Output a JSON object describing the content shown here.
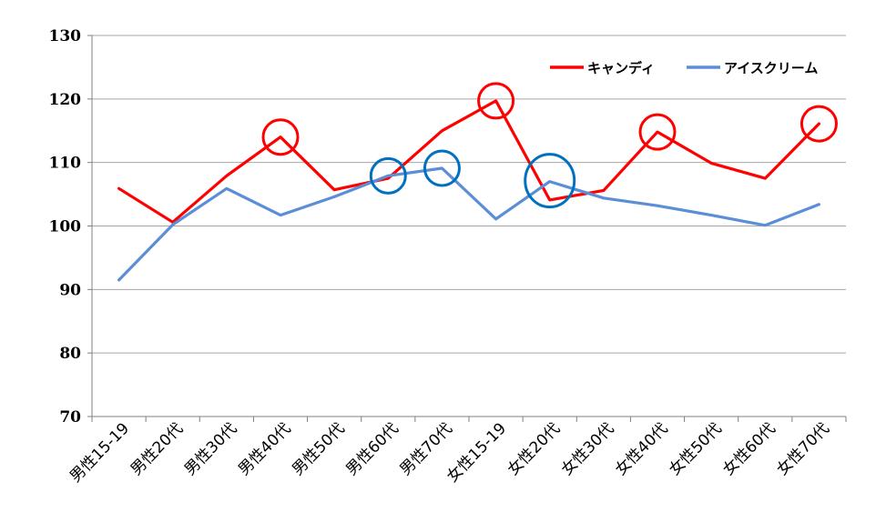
{
  "chart_data": {
    "type": "line",
    "title": "",
    "xlabel": "",
    "ylabel": "",
    "ylim": [
      70,
      130
    ],
    "yticks": [
      70,
      80,
      90,
      100,
      110,
      120,
      130
    ],
    "grid": "horizontal",
    "legend_position": "top-right",
    "categories": [
      "男性15-19",
      "男性20代",
      "男性30代",
      "男性40代",
      "男性50代",
      "男性60代",
      "男性70代",
      "女性15-19",
      "女性20代",
      "女性30代",
      "女性40代",
      "女性50代",
      "女性60代",
      "女性70代"
    ],
    "series": [
      {
        "name": "キャンディ",
        "color": "#ff0000",
        "values": [
          105.9,
          100.6,
          107.9,
          114.0,
          105.7,
          107.5,
          115.0,
          119.7,
          104.1,
          105.6,
          114.8,
          109.9,
          107.5,
          116.1
        ]
      },
      {
        "name": "アイスクリーム",
        "color": "#5b8ed6",
        "values": [
          91.5,
          100.2,
          105.9,
          101.7,
          104.6,
          107.9,
          109.1,
          101.1,
          107.0,
          104.4,
          103.2,
          101.7,
          100.1,
          103.4
        ]
      }
    ],
    "highlights": [
      {
        "series": 0,
        "index": 3,
        "color": "#ff0000"
      },
      {
        "series": 0,
        "index": 7,
        "color": "#ff0000"
      },
      {
        "series": 0,
        "index": 10,
        "color": "#ff0000"
      },
      {
        "series": 0,
        "index": 13,
        "color": "#ff0000"
      },
      {
        "series": 1,
        "index": 5,
        "color": "#0070c0"
      },
      {
        "series": 1,
        "index": 6,
        "color": "#0070c0"
      },
      {
        "series": 1,
        "index": 8,
        "color": "#0070c0"
      }
    ]
  }
}
